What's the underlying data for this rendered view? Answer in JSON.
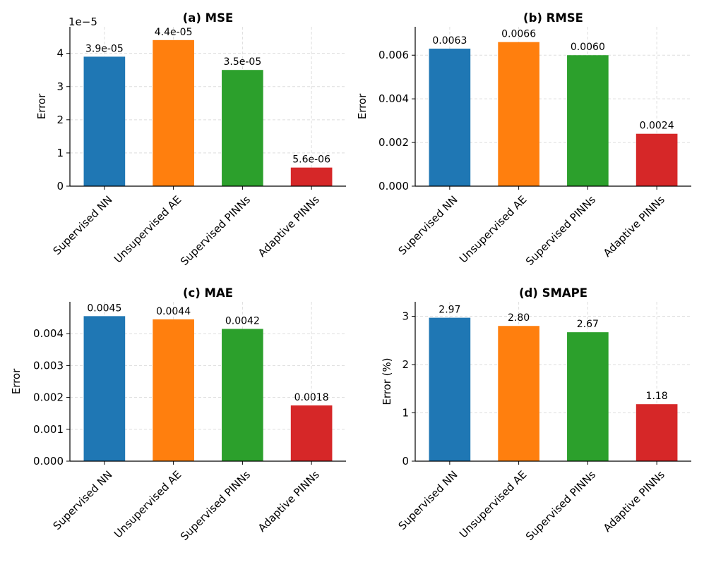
{
  "chart_data": [
    {
      "type": "bar",
      "title": "(a) MSE",
      "ylabel": "Error",
      "offset_text": "1e−5",
      "categories": [
        "Supervised NN",
        "Unsupervised AE",
        "Supervised PINNs",
        "Adaptive PINNs"
      ],
      "values": [
        3.9,
        4.4,
        3.5,
        0.56
      ],
      "value_labels": [
        "3.9e-05",
        "4.4e-05",
        "3.5e-05",
        "5.6e-06"
      ],
      "ylim": [
        0,
        4.8
      ],
      "yticks": [
        0,
        1,
        2,
        3,
        4
      ],
      "ytick_labels": [
        "0",
        "1",
        "2",
        "3",
        "4"
      ],
      "colors": [
        "#1f77b4",
        "#ff7f0e",
        "#2ca02c",
        "#d62728"
      ],
      "grid": true
    },
    {
      "type": "bar",
      "title": "(b) RMSE",
      "ylabel": "Error",
      "categories": [
        "Supervised NN",
        "Unsupervised AE",
        "Supervised PINNs",
        "Adaptive PINNs"
      ],
      "values": [
        0.0063,
        0.0066,
        0.006,
        0.0024
      ],
      "value_labels": [
        "0.0063",
        "0.0066",
        "0.0060",
        "0.0024"
      ],
      "ylim": [
        0,
        0.0073
      ],
      "yticks": [
        0,
        0.002,
        0.004,
        0.006
      ],
      "ytick_labels": [
        "0.000",
        "0.002",
        "0.004",
        "0.006"
      ],
      "colors": [
        "#1f77b4",
        "#ff7f0e",
        "#2ca02c",
        "#d62728"
      ],
      "grid": true
    },
    {
      "type": "bar",
      "title": "(c) MAE",
      "ylabel": "Error",
      "categories": [
        "Supervised NN",
        "Unsupervised AE",
        "Supervised PINNs",
        "Adaptive PINNs"
      ],
      "values": [
        0.00455,
        0.00445,
        0.00415,
        0.00175
      ],
      "value_labels": [
        "0.0045",
        "0.0044",
        "0.0042",
        "0.0018"
      ],
      "ylim": [
        0,
        0.005
      ],
      "yticks": [
        0,
        0.001,
        0.002,
        0.003,
        0.004
      ],
      "ytick_labels": [
        "0.000",
        "0.001",
        "0.002",
        "0.003",
        "0.004"
      ],
      "colors": [
        "#1f77b4",
        "#ff7f0e",
        "#2ca02c",
        "#d62728"
      ],
      "grid": true
    },
    {
      "type": "bar",
      "title": "(d) SMAPE",
      "ylabel": "Error (%)",
      "categories": [
        "Supervised NN",
        "Unsupervised AE",
        "Supervised PINNs",
        "Adaptive PINNs"
      ],
      "values": [
        2.97,
        2.8,
        2.67,
        1.18
      ],
      "value_labels": [
        "2.97",
        "2.80",
        "2.67",
        "1.18"
      ],
      "ylim": [
        0,
        3.3
      ],
      "yticks": [
        0,
        1,
        2,
        3
      ],
      "ytick_labels": [
        "0",
        "1",
        "2",
        "3"
      ],
      "colors": [
        "#1f77b4",
        "#ff7f0e",
        "#2ca02c",
        "#d62728"
      ],
      "grid": true
    }
  ]
}
